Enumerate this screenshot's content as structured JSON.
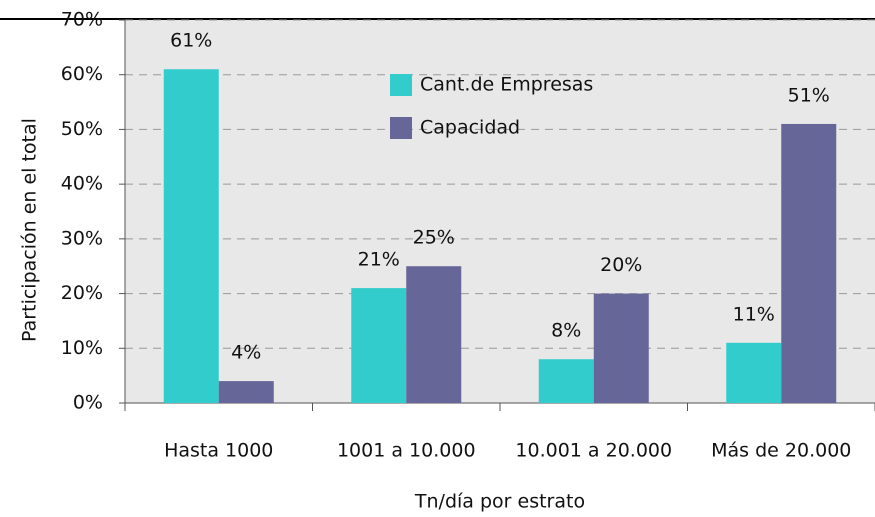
{
  "chart_data": {
    "type": "bar",
    "y_label": "Participación en el total",
    "x_label": "Tn/día por estrato",
    "categories": [
      "Hasta 1000",
      "1001 a 10.000",
      "10.001 a 20.000",
      "Más de 20.000"
    ],
    "series": [
      {
        "name": "Cant.de Empresas",
        "color": "#33cccc",
        "values": [
          61,
          21,
          8,
          11
        ],
        "value_labels": [
          "61%",
          "21%",
          "8%",
          "11%"
        ]
      },
      {
        "name": "Capacidad",
        "color": "#666699",
        "values": [
          4,
          25,
          20,
          51
        ],
        "value_labels": [
          "4%",
          "25%",
          "20%",
          "51%"
        ]
      }
    ],
    "ylim": [
      0,
      70
    ],
    "yticks": [
      {
        "value": 0,
        "label": "0%"
      },
      {
        "value": 10,
        "label": "10%"
      },
      {
        "value": 20,
        "label": "20%"
      },
      {
        "value": 30,
        "label": "30%"
      },
      {
        "value": 40,
        "label": "40%"
      },
      {
        "value": 50,
        "label": "50%"
      },
      {
        "value": 60,
        "label": "60%"
      },
      {
        "value": 70,
        "label": "70%"
      }
    ],
    "grid": true
  }
}
